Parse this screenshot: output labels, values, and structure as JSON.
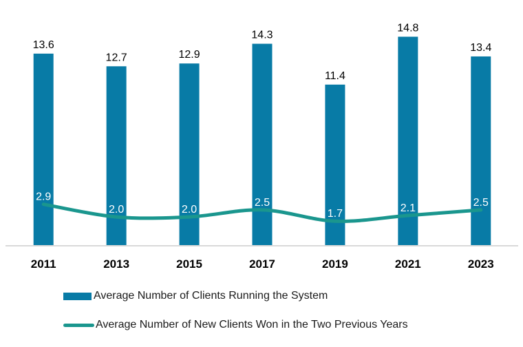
{
  "chart_data": {
    "type": "bar",
    "subtype": "bar-and-line-combo",
    "categories": [
      "2011",
      "2013",
      "2015",
      "2017",
      "2019",
      "2021",
      "2023"
    ],
    "series": [
      {
        "name": "Average Number of Clients Running the System",
        "type": "bar",
        "color": "#087BA6",
        "values": [
          13.6,
          12.7,
          12.9,
          14.3,
          11.4,
          14.8,
          13.4
        ],
        "data_label_color": "#000000"
      },
      {
        "name": "Average Number of New Clients Won in the Two Previous Years",
        "type": "line",
        "color": "#1A968E",
        "values": [
          2.9,
          2.0,
          2.0,
          2.5,
          1.7,
          2.1,
          2.5
        ],
        "data_label_color": "#ffffff"
      }
    ],
    "title": "",
    "xlabel": "",
    "ylabel": "",
    "ylim": [
      0,
      17.4
    ],
    "grid": false,
    "y_axis_visible": false,
    "x_axis_line_color": "#D9D9D9",
    "x_tick_label_color": "#000000",
    "legend_position": "bottom-left"
  }
}
